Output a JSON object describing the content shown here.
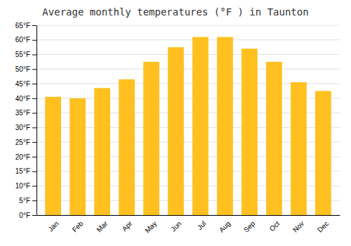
{
  "chart_data": {
    "type": "bar",
    "title": "Average monthly temperatures (°F ) in Taunton",
    "categories": [
      "Jan",
      "Feb",
      "Mar",
      "Apr",
      "May",
      "Jun",
      "Jul",
      "Aug",
      "Sep",
      "Oct",
      "Nov",
      "Dec"
    ],
    "values": [
      40.5,
      40.0,
      43.5,
      46.5,
      52.5,
      57.5,
      61.0,
      61.0,
      57.0,
      52.5,
      45.5,
      42.5
    ],
    "color": "#FFC020",
    "ylim": [
      0,
      65
    ],
    "yticks": [
      {
        "value": 0,
        "label": "0°F"
      },
      {
        "value": 5,
        "label": "5°F"
      },
      {
        "value": 10,
        "label": "10°F"
      },
      {
        "value": 15,
        "label": "15°F"
      },
      {
        "value": 20,
        "label": "20°F"
      },
      {
        "value": 25,
        "label": "25°F"
      },
      {
        "value": 30,
        "label": "30°F"
      },
      {
        "value": 35,
        "label": "35°F"
      },
      {
        "value": 40,
        "label": "40°F"
      },
      {
        "value": 45,
        "label": "45°F"
      },
      {
        "value": 50,
        "label": "50°F"
      },
      {
        "value": 55,
        "label": "55°F"
      },
      {
        "value": 60,
        "label": "60°F"
      },
      {
        "value": 65,
        "label": "65°F"
      }
    ],
    "grid": true
  }
}
